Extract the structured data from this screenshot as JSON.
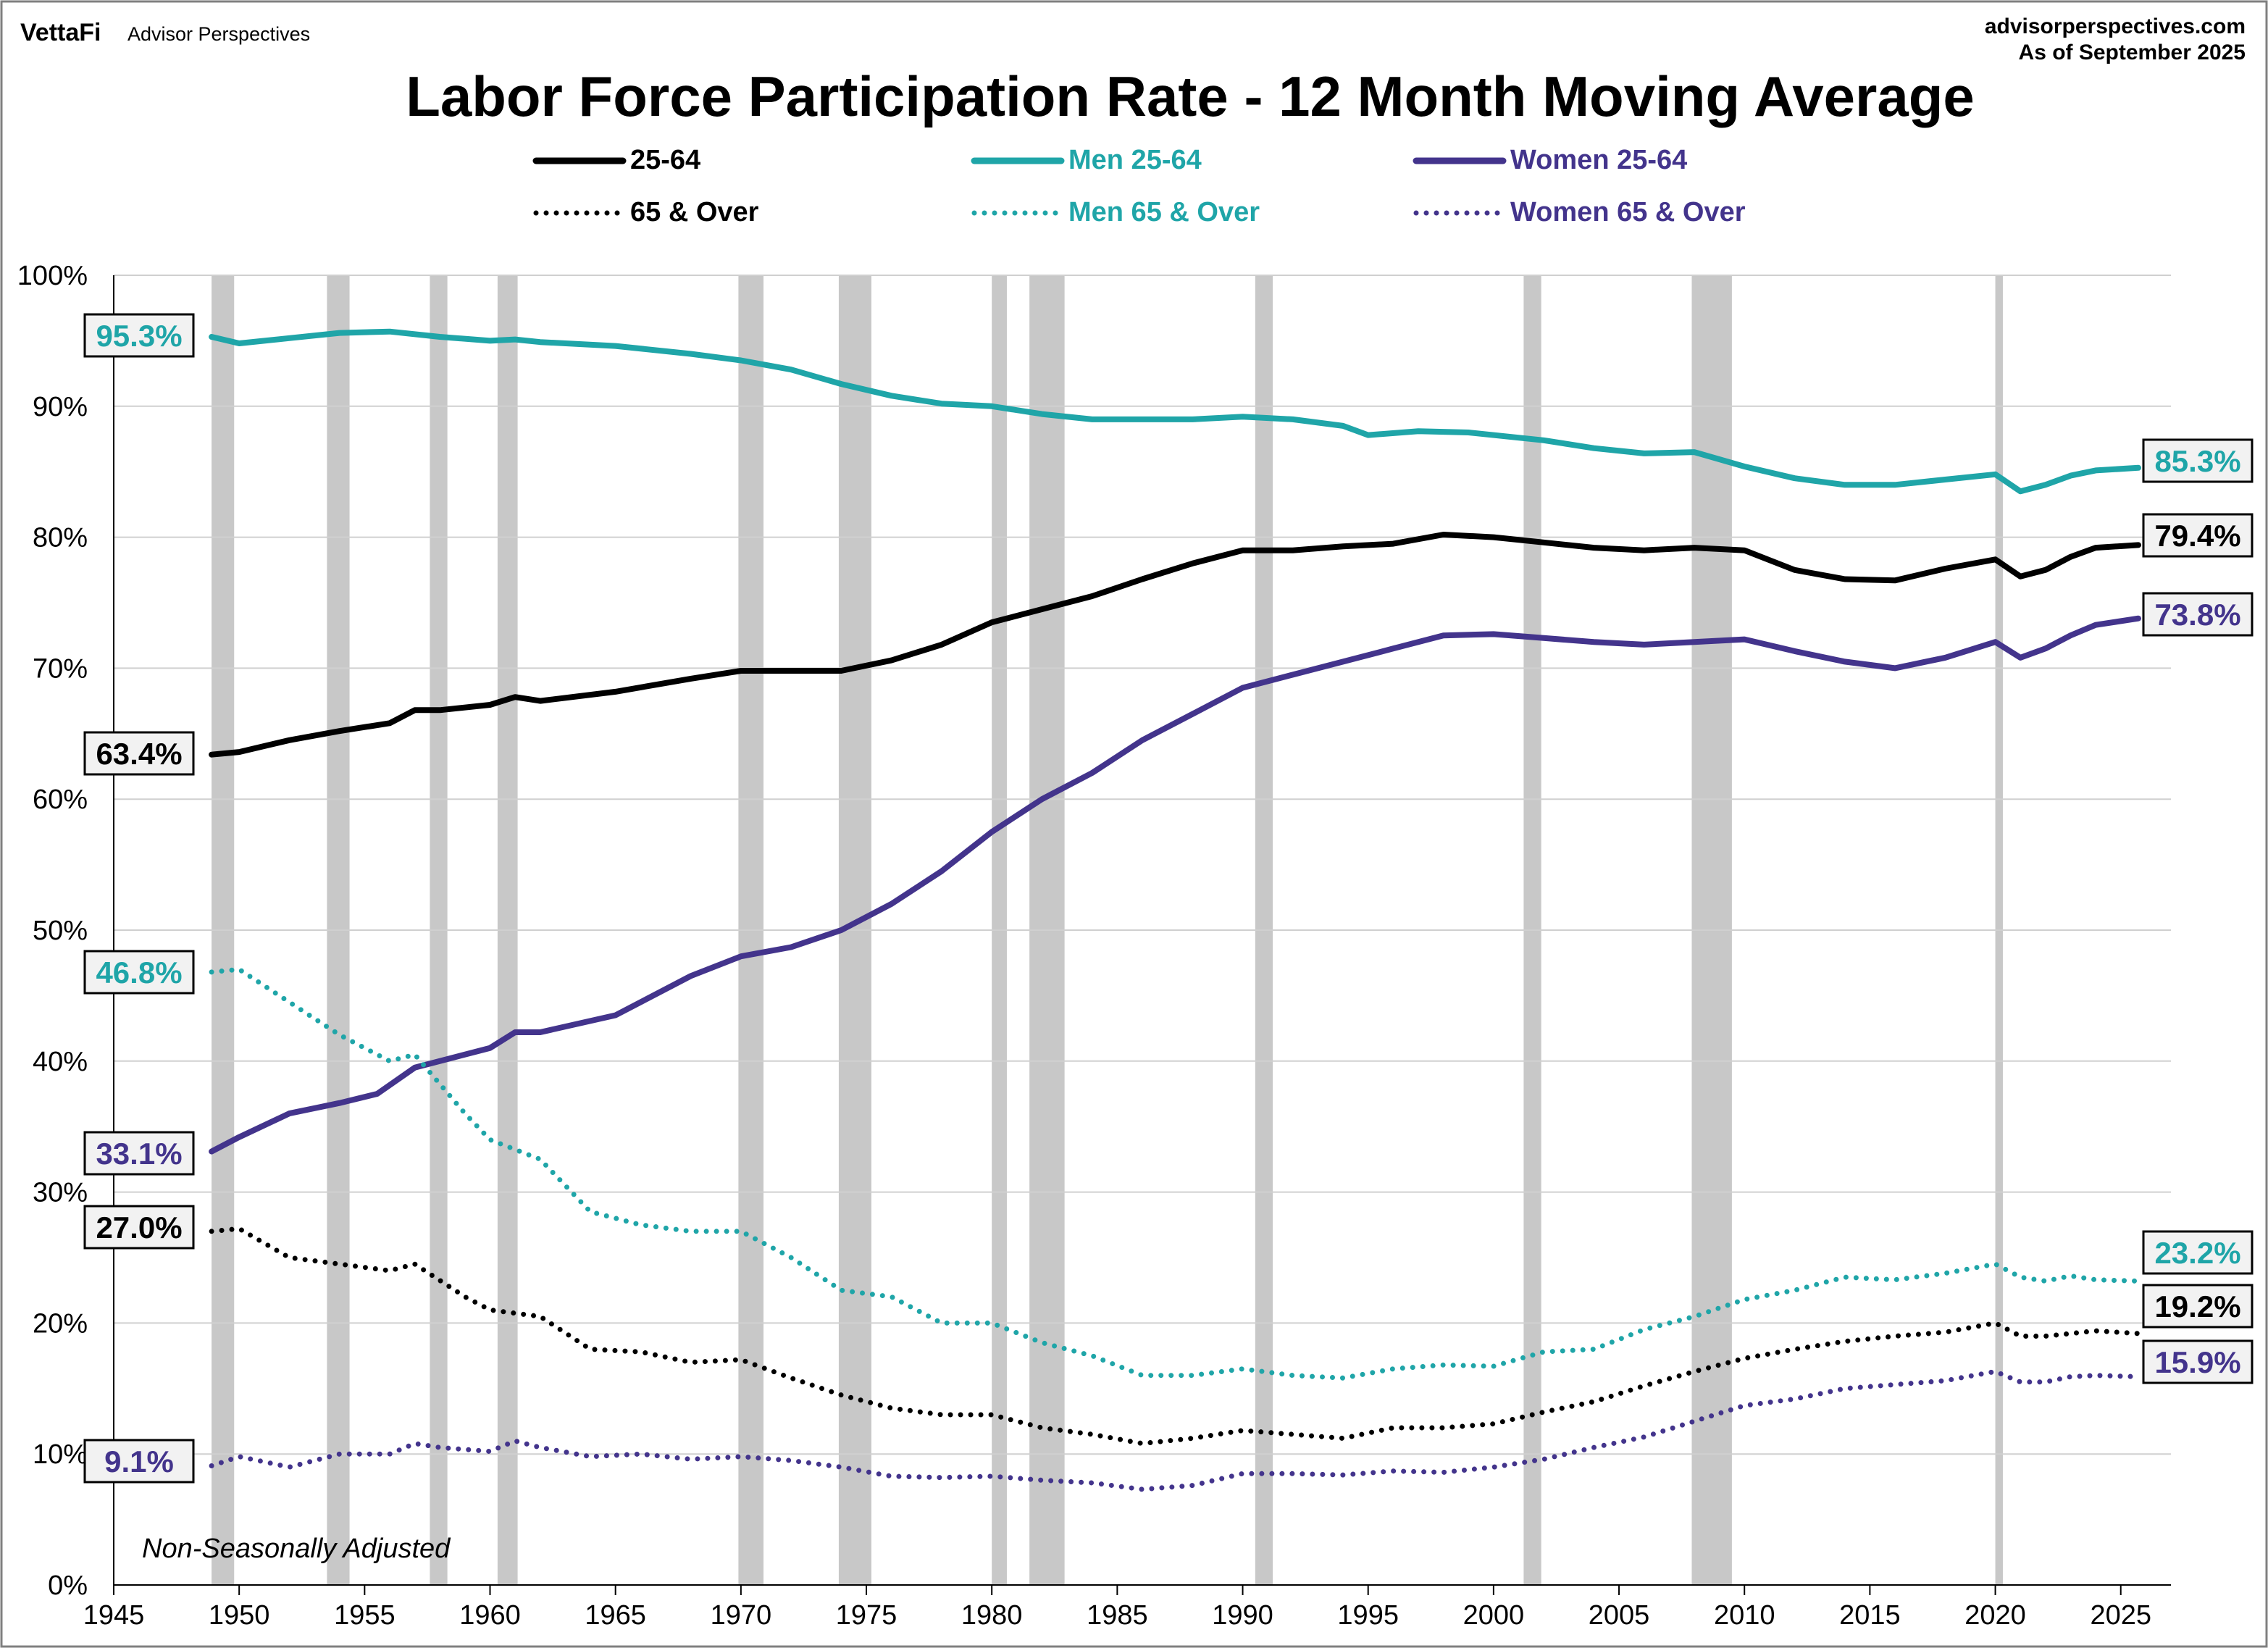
{
  "header": {
    "brand": "VettaFi",
    "brand_sub": "Advisor Perspectives",
    "site": "advisorperspectives.com",
    "as_of": "As of September 2025"
  },
  "colors": {
    "black": "#000000",
    "teal": "#1fa5a8",
    "purple": "#43348c",
    "recession": "#c8c8c8",
    "grid": "#d0d0d0"
  },
  "chart_data": {
    "type": "line",
    "title": "Labor Force Participation Rate - 12 Month Moving Average",
    "xlabel": "",
    "ylabel": "",
    "xlim": [
      1945,
      2027
    ],
    "ylim": [
      0,
      100
    ],
    "x_ticks": [
      "1945",
      "1950",
      "1955",
      "1960",
      "1965",
      "1970",
      "1975",
      "1980",
      "1985",
      "1990",
      "1995",
      "2000",
      "2005",
      "2010",
      "2015",
      "2020",
      "2025"
    ],
    "y_ticks": [
      "0%",
      "10%",
      "20%",
      "30%",
      "40%",
      "50%",
      "60%",
      "70%",
      "80%",
      "90%",
      "100%"
    ],
    "grid": true,
    "legend_position": "top-center",
    "annotation": "Non-Seasonally Adjusted",
    "recessions": [
      [
        1948.9,
        1949.8
      ],
      [
        1953.5,
        1954.4
      ],
      [
        1957.6,
        1958.3
      ],
      [
        1960.3,
        1961.1
      ],
      [
        1969.9,
        1970.9
      ],
      [
        1973.9,
        1975.2
      ],
      [
        1980.0,
        1980.6
      ],
      [
        1981.5,
        1982.9
      ],
      [
        1990.5,
        1991.2
      ],
      [
        2001.2,
        2001.9
      ],
      [
        2007.9,
        2009.5
      ],
      [
        2020.0,
        2020.3
      ]
    ],
    "series": [
      {
        "name": "25-64",
        "color": "#000000",
        "style": "solid",
        "end_label": "79.4%",
        "start_label": "63.4%",
        "points": [
          [
            1948.9,
            63.4
          ],
          [
            1950,
            63.6
          ],
          [
            1952,
            64.5
          ],
          [
            1954,
            65.2
          ],
          [
            1956,
            65.8
          ],
          [
            1957,
            66.8
          ],
          [
            1958,
            66.8
          ],
          [
            1960,
            67.2
          ],
          [
            1961,
            67.8
          ],
          [
            1962,
            67.5
          ],
          [
            1965,
            68.2
          ],
          [
            1968,
            69.2
          ],
          [
            1970,
            69.8
          ],
          [
            1972,
            69.8
          ],
          [
            1974,
            69.8
          ],
          [
            1976,
            70.6
          ],
          [
            1978,
            71.8
          ],
          [
            1980,
            73.5
          ],
          [
            1982,
            74.5
          ],
          [
            1984,
            75.5
          ],
          [
            1986,
            76.8
          ],
          [
            1988,
            78.0
          ],
          [
            1990,
            79.0
          ],
          [
            1992,
            79.0
          ],
          [
            1994,
            79.3
          ],
          [
            1996,
            79.5
          ],
          [
            1998,
            80.2
          ],
          [
            2000,
            80.0
          ],
          [
            2002,
            79.6
          ],
          [
            2004,
            79.2
          ],
          [
            2006,
            79.0
          ],
          [
            2008,
            79.2
          ],
          [
            2010,
            79.0
          ],
          [
            2012,
            77.5
          ],
          [
            2014,
            76.8
          ],
          [
            2016,
            76.7
          ],
          [
            2018,
            77.6
          ],
          [
            2020,
            78.3
          ],
          [
            2021,
            77.0
          ],
          [
            2022,
            77.5
          ],
          [
            2023,
            78.5
          ],
          [
            2024,
            79.2
          ],
          [
            2025.7,
            79.4
          ]
        ]
      },
      {
        "name": "Men 25-64",
        "color": "#1fa5a8",
        "style": "solid",
        "end_label": "85.3%",
        "start_label": "95.3%",
        "points": [
          [
            1948.9,
            95.3
          ],
          [
            1950,
            94.8
          ],
          [
            1952,
            95.2
          ],
          [
            1954,
            95.6
          ],
          [
            1956,
            95.7
          ],
          [
            1958,
            95.3
          ],
          [
            1960,
            95.0
          ],
          [
            1961,
            95.1
          ],
          [
            1962,
            94.9
          ],
          [
            1965,
            94.6
          ],
          [
            1968,
            94.0
          ],
          [
            1970,
            93.5
          ],
          [
            1972,
            92.8
          ],
          [
            1974,
            91.7
          ],
          [
            1976,
            90.8
          ],
          [
            1978,
            90.2
          ],
          [
            1980,
            90.0
          ],
          [
            1982,
            89.4
          ],
          [
            1984,
            89.0
          ],
          [
            1986,
            89.0
          ],
          [
            1988,
            89.0
          ],
          [
            1990,
            89.2
          ],
          [
            1992,
            89.0
          ],
          [
            1994,
            88.5
          ],
          [
            1995,
            87.8
          ],
          [
            1997,
            88.1
          ],
          [
            1999,
            88.0
          ],
          [
            2002,
            87.4
          ],
          [
            2004,
            86.8
          ],
          [
            2006,
            86.4
          ],
          [
            2008,
            86.5
          ],
          [
            2010,
            85.4
          ],
          [
            2012,
            84.5
          ],
          [
            2014,
            84.0
          ],
          [
            2016,
            84.0
          ],
          [
            2018,
            84.4
          ],
          [
            2020,
            84.8
          ],
          [
            2021,
            83.5
          ],
          [
            2022,
            84.0
          ],
          [
            2023,
            84.7
          ],
          [
            2024,
            85.1
          ],
          [
            2025.7,
            85.3
          ]
        ]
      },
      {
        "name": "Women 25-64",
        "color": "#43348c",
        "style": "solid",
        "end_label": "73.8%",
        "start_label": "33.1%",
        "points": [
          [
            1948.9,
            33.1
          ],
          [
            1950,
            34.2
          ],
          [
            1952,
            36.0
          ],
          [
            1954,
            36.8
          ],
          [
            1955.5,
            37.5
          ],
          [
            1957,
            39.5
          ],
          [
            1958,
            40.0
          ],
          [
            1960,
            41.0
          ],
          [
            1961,
            42.2
          ],
          [
            1962,
            42.2
          ],
          [
            1965,
            43.5
          ],
          [
            1968,
            46.5
          ],
          [
            1970,
            48.0
          ],
          [
            1972,
            48.7
          ],
          [
            1974,
            50.0
          ],
          [
            1976,
            52.0
          ],
          [
            1978,
            54.5
          ],
          [
            1980,
            57.5
          ],
          [
            1982,
            60.0
          ],
          [
            1984,
            62.0
          ],
          [
            1986,
            64.5
          ],
          [
            1988,
            66.5
          ],
          [
            1990,
            68.5
          ],
          [
            1992,
            69.5
          ],
          [
            1994,
            70.5
          ],
          [
            1996,
            71.5
          ],
          [
            1998,
            72.5
          ],
          [
            2000,
            72.6
          ],
          [
            2002,
            72.3
          ],
          [
            2004,
            72.0
          ],
          [
            2006,
            71.8
          ],
          [
            2008,
            72.0
          ],
          [
            2010,
            72.2
          ],
          [
            2012,
            71.3
          ],
          [
            2014,
            70.5
          ],
          [
            2016,
            70.0
          ],
          [
            2018,
            70.8
          ],
          [
            2020,
            72.0
          ],
          [
            2021,
            70.8
          ],
          [
            2022,
            71.5
          ],
          [
            2023,
            72.5
          ],
          [
            2024,
            73.3
          ],
          [
            2025.7,
            73.8
          ]
        ]
      },
      {
        "name": "65 & Over",
        "color": "#000000",
        "style": "dotted",
        "end_label": "19.2%",
        "start_label": "27.0%",
        "points": [
          [
            1948.9,
            27.0
          ],
          [
            1950,
            27.2
          ],
          [
            1952,
            25.0
          ],
          [
            1954,
            24.5
          ],
          [
            1956,
            24.0
          ],
          [
            1957,
            24.5
          ],
          [
            1959,
            22.0
          ],
          [
            1960,
            21.0
          ],
          [
            1962,
            20.5
          ],
          [
            1964,
            18.0
          ],
          [
            1966,
            17.8
          ],
          [
            1968,
            17.0
          ],
          [
            1970,
            17.2
          ],
          [
            1972,
            15.8
          ],
          [
            1974,
            14.5
          ],
          [
            1976,
            13.5
          ],
          [
            1978,
            13.0
          ],
          [
            1980,
            13.0
          ],
          [
            1982,
            12.0
          ],
          [
            1984,
            11.5
          ],
          [
            1986,
            10.8
          ],
          [
            1988,
            11.2
          ],
          [
            1990,
            11.8
          ],
          [
            1992,
            11.5
          ],
          [
            1994,
            11.2
          ],
          [
            1996,
            12.0
          ],
          [
            1998,
            12.0
          ],
          [
            2000,
            12.3
          ],
          [
            2002,
            13.2
          ],
          [
            2004,
            14.0
          ],
          [
            2006,
            15.2
          ],
          [
            2008,
            16.3
          ],
          [
            2010,
            17.3
          ],
          [
            2012,
            18.0
          ],
          [
            2014,
            18.6
          ],
          [
            2016,
            19.0
          ],
          [
            2018,
            19.3
          ],
          [
            2020,
            20.0
          ],
          [
            2021,
            19.0
          ],
          [
            2022,
            19.0
          ],
          [
            2023,
            19.2
          ],
          [
            2024,
            19.4
          ],
          [
            2025.7,
            19.2
          ]
        ]
      },
      {
        "name": "Men 65 & Over",
        "color": "#1fa5a8",
        "style": "dotted",
        "end_label": "23.2%",
        "start_label": "46.8%",
        "points": [
          [
            1948.9,
            46.8
          ],
          [
            1950,
            47.0
          ],
          [
            1952,
            44.5
          ],
          [
            1954,
            42.0
          ],
          [
            1956,
            40.0
          ],
          [
            1957,
            40.5
          ],
          [
            1959,
            36.0
          ],
          [
            1960,
            34.0
          ],
          [
            1962,
            32.5
          ],
          [
            1964,
            28.5
          ],
          [
            1966,
            27.5
          ],
          [
            1968,
            27.0
          ],
          [
            1970,
            27.0
          ],
          [
            1972,
            25.0
          ],
          [
            1974,
            22.5
          ],
          [
            1976,
            22.0
          ],
          [
            1978,
            20.0
          ],
          [
            1980,
            20.0
          ],
          [
            1982,
            18.5
          ],
          [
            1984,
            17.5
          ],
          [
            1986,
            16.0
          ],
          [
            1988,
            16.0
          ],
          [
            1990,
            16.5
          ],
          [
            1992,
            16.0
          ],
          [
            1994,
            15.8
          ],
          [
            1996,
            16.5
          ],
          [
            1998,
            16.8
          ],
          [
            2000,
            16.7
          ],
          [
            2002,
            17.8
          ],
          [
            2004,
            18.0
          ],
          [
            2006,
            19.5
          ],
          [
            2008,
            20.5
          ],
          [
            2010,
            21.8
          ],
          [
            2012,
            22.5
          ],
          [
            2014,
            23.5
          ],
          [
            2016,
            23.3
          ],
          [
            2018,
            23.8
          ],
          [
            2020,
            24.5
          ],
          [
            2021,
            23.5
          ],
          [
            2022,
            23.2
          ],
          [
            2023,
            23.6
          ],
          [
            2024,
            23.3
          ],
          [
            2025.7,
            23.2
          ]
        ]
      },
      {
        "name": "Women 65 & Over",
        "color": "#43348c",
        "style": "dotted",
        "end_label": "15.9%",
        "start_label": "9.1%",
        "points": [
          [
            1948.9,
            9.1
          ],
          [
            1950,
            9.8
          ],
          [
            1952,
            9.0
          ],
          [
            1954,
            10.0
          ],
          [
            1956,
            10.0
          ],
          [
            1957,
            10.8
          ],
          [
            1958,
            10.5
          ],
          [
            1960,
            10.2
          ],
          [
            1961,
            11.0
          ],
          [
            1962,
            10.5
          ],
          [
            1964,
            9.8
          ],
          [
            1966,
            10.0
          ],
          [
            1968,
            9.6
          ],
          [
            1970,
            9.8
          ],
          [
            1972,
            9.5
          ],
          [
            1974,
            9.0
          ],
          [
            1976,
            8.3
          ],
          [
            1978,
            8.2
          ],
          [
            1980,
            8.3
          ],
          [
            1982,
            8.0
          ],
          [
            1984,
            7.8
          ],
          [
            1986,
            7.3
          ],
          [
            1988,
            7.6
          ],
          [
            1990,
            8.5
          ],
          [
            1992,
            8.5
          ],
          [
            1994,
            8.4
          ],
          [
            1996,
            8.7
          ],
          [
            1998,
            8.6
          ],
          [
            2000,
            9.0
          ],
          [
            2002,
            9.6
          ],
          [
            2004,
            10.5
          ],
          [
            2006,
            11.3
          ],
          [
            2008,
            12.5
          ],
          [
            2010,
            13.7
          ],
          [
            2012,
            14.2
          ],
          [
            2014,
            15.0
          ],
          [
            2016,
            15.3
          ],
          [
            2018,
            15.6
          ],
          [
            2020,
            16.3
          ],
          [
            2021,
            15.5
          ],
          [
            2022,
            15.5
          ],
          [
            2023,
            15.9
          ],
          [
            2024,
            16.0
          ],
          [
            2025.7,
            15.9
          ]
        ]
      }
    ]
  }
}
